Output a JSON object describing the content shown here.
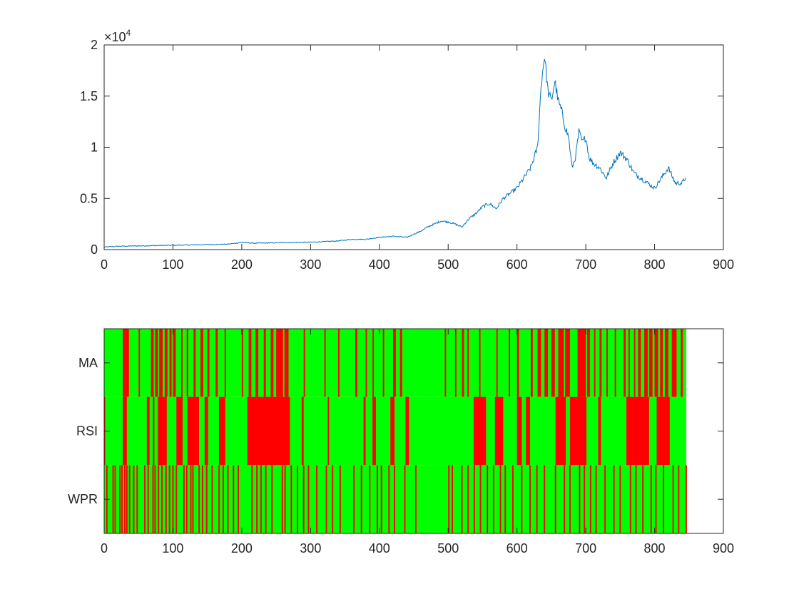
{
  "colors": {
    "line": "#0072bd",
    "buy": "#00ff00",
    "sell": "#ff0000",
    "axis": "#262626"
  },
  "chart_data": [
    {
      "type": "line",
      "xlim": [
        0,
        900
      ],
      "ylim": [
        0,
        2
      ],
      "y_multiplier": "×10",
      "y_multiplier_exponent": "4",
      "x_ticks": [
        0,
        100,
        200,
        300,
        400,
        500,
        600,
        700,
        800,
        900
      ],
      "x_tick_labels": [
        "0",
        "100",
        "200",
        "300",
        "400",
        "500",
        "600",
        "700",
        "800",
        "900"
      ],
      "y_ticks": [
        0,
        0.5,
        1,
        1.5,
        2
      ],
      "y_tick_labels": [
        "0",
        "0.5",
        "1",
        "1.5",
        "2"
      ],
      "grid": false,
      "series": [
        {
          "x": [
            0,
            20,
            40,
            60,
            80,
            100,
            120,
            140,
            160,
            180,
            200,
            220,
            240,
            260,
            280,
            300,
            320,
            340,
            360,
            380,
            400,
            420,
            440,
            460,
            470,
            480,
            490,
            500,
            510,
            520,
            530,
            540,
            550,
            560,
            570,
            580,
            590,
            600,
            610,
            620,
            630,
            635,
            640,
            645,
            650,
            655,
            660,
            665,
            670,
            675,
            680,
            685,
            690,
            695,
            700,
            705,
            710,
            720,
            730,
            740,
            750,
            760,
            770,
            780,
            790,
            800,
            810,
            820,
            830,
            840,
            845
          ],
          "y": [
            0.025,
            0.032,
            0.035,
            0.037,
            0.04,
            0.042,
            0.045,
            0.047,
            0.05,
            0.053,
            0.07,
            0.062,
            0.065,
            0.068,
            0.07,
            0.072,
            0.078,
            0.085,
            0.1,
            0.1,
            0.12,
            0.13,
            0.12,
            0.18,
            0.22,
            0.25,
            0.28,
            0.27,
            0.25,
            0.22,
            0.3,
            0.35,
            0.42,
            0.45,
            0.4,
            0.5,
            0.55,
            0.6,
            0.7,
            0.8,
            1.0,
            1.6,
            1.9,
            1.55,
            1.45,
            1.65,
            1.45,
            1.35,
            1.2,
            1.1,
            0.8,
            0.9,
            1.15,
            1.05,
            1.1,
            0.9,
            0.85,
            0.8,
            0.7,
            0.85,
            0.95,
            0.88,
            0.75,
            0.7,
            0.65,
            0.6,
            0.7,
            0.8,
            0.65,
            0.65,
            0.7
          ]
        }
      ]
    },
    {
      "type": "heatmap",
      "xlim": [
        0,
        900
      ],
      "data_end": 846,
      "x_ticks": [
        0,
        100,
        200,
        300,
        400,
        500,
        600,
        700,
        800,
        900
      ],
      "x_tick_labels": [
        "0",
        "100",
        "200",
        "300",
        "400",
        "500",
        "600",
        "700",
        "800",
        "900"
      ],
      "rows": [
        "MA",
        "RSI",
        "WPR"
      ],
      "grid": false,
      "signal_colors": [
        "#00ff00",
        "#ff0000"
      ],
      "red_intervals": {
        "MA": [
          [
            27,
            36
          ],
          [
            50,
            52
          ],
          [
            68,
            72
          ],
          [
            74,
            78
          ],
          [
            80,
            85
          ],
          [
            88,
            92
          ],
          [
            95,
            98
          ],
          [
            100,
            104
          ],
          [
            112,
            114
          ],
          [
            120,
            122
          ],
          [
            130,
            133
          ],
          [
            140,
            144
          ],
          [
            150,
            153
          ],
          [
            162,
            165
          ],
          [
            175,
            177
          ],
          [
            200,
            202
          ],
          [
            210,
            214
          ],
          [
            220,
            224
          ],
          [
            232,
            235
          ],
          [
            242,
            246
          ],
          [
            250,
            260
          ],
          [
            262,
            268
          ],
          [
            290,
            292
          ],
          [
            320,
            322
          ],
          [
            340,
            342
          ],
          [
            365,
            368
          ],
          [
            380,
            382
          ],
          [
            390,
            392
          ],
          [
            405,
            407
          ],
          [
            420,
            424
          ],
          [
            430,
            433
          ],
          [
            495,
            497
          ],
          [
            510,
            512
          ],
          [
            520,
            523
          ],
          [
            528,
            530
          ],
          [
            545,
            547
          ],
          [
            570,
            572
          ],
          [
            588,
            590
          ],
          [
            600,
            603
          ],
          [
            620,
            623
          ],
          [
            630,
            635
          ],
          [
            640,
            645
          ],
          [
            650,
            655
          ],
          [
            660,
            668
          ],
          [
            670,
            677
          ],
          [
            688,
            700
          ],
          [
            702,
            706
          ],
          [
            712,
            714
          ],
          [
            720,
            723
          ],
          [
            730,
            732
          ],
          [
            742,
            744
          ],
          [
            755,
            758
          ],
          [
            762,
            764
          ],
          [
            770,
            772
          ],
          [
            776,
            780
          ],
          [
            785,
            790
          ],
          [
            792,
            797
          ],
          [
            800,
            805
          ],
          [
            808,
            812
          ],
          [
            815,
            820
          ],
          [
            825,
            832
          ],
          [
            838,
            841
          ]
        ]
      },
      "intervals": {
        "RSI": [
          [
            0,
            0
          ],
          [
            27,
            33
          ],
          [
            62,
            66
          ],
          [
            71,
            73
          ],
          [
            78,
            91
          ],
          [
            105,
            114
          ],
          [
            121,
            132
          ],
          [
            132,
            138
          ],
          [
            146,
            151
          ],
          [
            167,
            176
          ],
          [
            208,
            270
          ],
          [
            287,
            290
          ],
          [
            325,
            327
          ],
          [
            377,
            380
          ],
          [
            390,
            395
          ],
          [
            416,
            422
          ],
          [
            438,
            443
          ],
          [
            537,
            555
          ],
          [
            568,
            580
          ],
          [
            600,
            607
          ],
          [
            613,
            619
          ],
          [
            656,
            671
          ],
          [
            677,
            701
          ],
          [
            718,
            722
          ],
          [
            759,
            792
          ],
          [
            803,
            822
          ]
        ]
      },
      "wpr_bars": [
        3,
        12,
        15,
        22,
        25,
        29,
        32,
        36,
        42,
        47,
        58,
        63,
        70,
        73,
        78,
        83,
        89,
        94,
        99,
        104,
        115,
        119,
        125,
        128,
        137,
        142,
        148,
        156,
        166,
        172,
        179,
        187,
        194,
        214,
        221,
        227,
        234,
        243,
        258,
        262,
        271,
        280,
        289,
        296,
        308,
        322,
        331,
        342,
        362,
        373,
        385,
        396,
        402,
        413,
        421,
        436,
        452,
        500,
        505,
        519,
        528,
        537,
        546,
        556,
        565,
        575,
        582,
        593,
        606,
        618,
        628,
        639,
        655,
        668,
        676,
        690,
        697,
        706,
        714,
        727,
        740,
        749,
        764,
        772,
        782,
        794,
        801,
        812,
        826,
        834,
        845
      ]
    }
  ]
}
